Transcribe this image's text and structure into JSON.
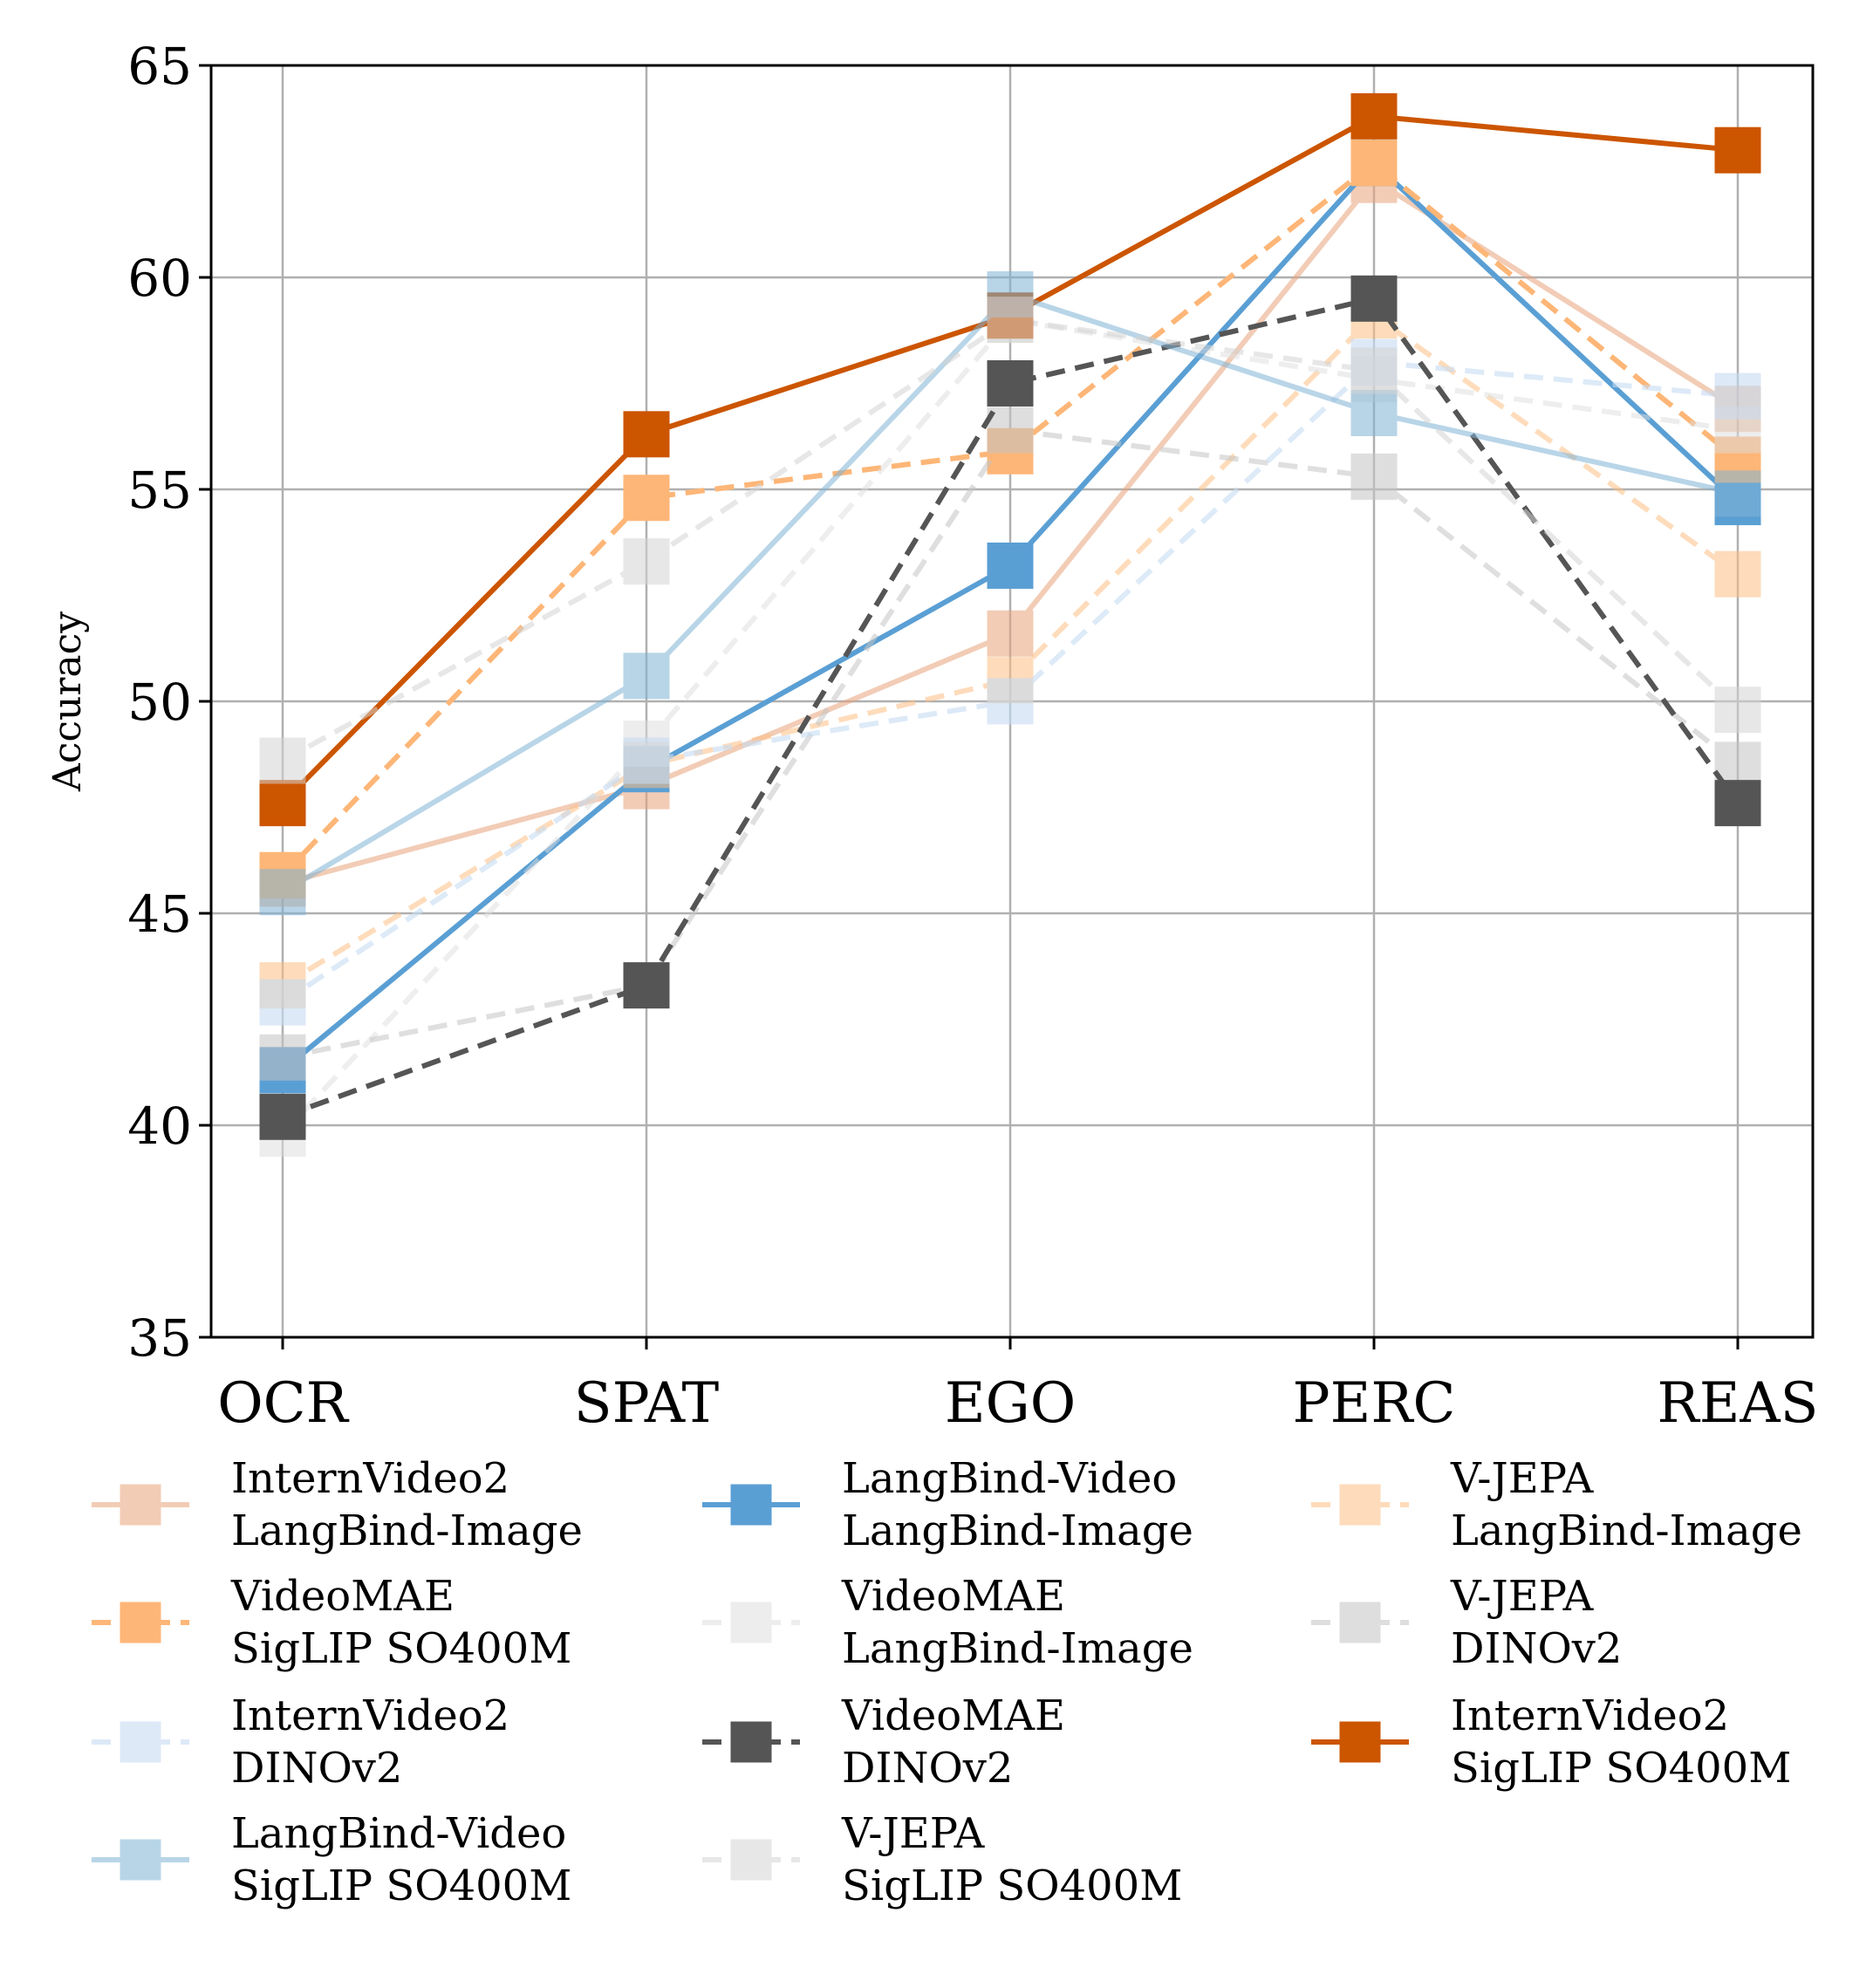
{
  "chart_data": {
    "type": "line",
    "categories": [
      "OCR",
      "SPAT",
      "EGO",
      "PERC",
      "REAS"
    ],
    "ylabel": "Accuracy",
    "ylim": [
      35,
      65
    ],
    "yticks": [
      "35",
      "40",
      "45",
      "50",
      "55",
      "60",
      "65"
    ],
    "grid": true,
    "legend_position": "bottom",
    "series": [
      {
        "name": [
          "InternVideo2",
          "LangBind-Image"
        ],
        "values": [
          45.7,
          48.0,
          51.6,
          62.3,
          56.9
        ],
        "color": "#e8a37a",
        "opacity": 0.55,
        "dashed": false
      },
      {
        "name": [
          "LangBind-Video",
          "LangBind-Image"
        ],
        "values": [
          41.3,
          48.4,
          53.2,
          62.7,
          54.7
        ],
        "color": "#5a9fd4",
        "opacity": 1.0,
        "dashed": false
      },
      {
        "name": [
          "V-JEPA",
          "LangBind-Image"
        ],
        "values": [
          43.3,
          48.5,
          50.5,
          59.1,
          53.0
        ],
        "color": "#fdbf84",
        "opacity": 0.55,
        "dashed": true
      },
      {
        "name": [
          "VideoMAE",
          "SigLIP SO400M"
        ],
        "values": [
          45.9,
          54.8,
          55.9,
          62.7,
          55.7
        ],
        "color": "#fdb677",
        "opacity": 1.0,
        "dashed": true
      },
      {
        "name": [
          "VideoMAE",
          "LangBind-Image"
        ],
        "values": [
          39.8,
          49.0,
          59.0,
          57.6,
          56.4
        ],
        "color": "#dddddd",
        "opacity": 0.5,
        "dashed": true
      },
      {
        "name": [
          "V-JEPA",
          "DINOv2"
        ],
        "values": [
          41.6,
          43.3,
          56.4,
          55.3,
          48.5
        ],
        "color": "#c4c4c4",
        "opacity": 0.55,
        "dashed": true
      },
      {
        "name": [
          "InternVideo2",
          "DINOv2"
        ],
        "values": [
          42.9,
          48.6,
          50.0,
          58.0,
          57.2
        ],
        "color": "#c7dcf2",
        "opacity": 0.6,
        "dashed": true
      },
      {
        "name": [
          "VideoMAE",
          "DINOv2"
        ],
        "values": [
          40.2,
          43.3,
          57.5,
          59.5,
          47.6
        ],
        "color": "#555555",
        "opacity": 1.0,
        "dashed": true
      },
      {
        "name": [
          "InternVideo2",
          "SigLIP SO400M"
        ],
        "values": [
          47.6,
          56.3,
          59.1,
          63.8,
          63.0
        ],
        "color": "#cc5500",
        "opacity": 1.0,
        "dashed": false
      },
      {
        "name": [
          "LangBind-Video",
          "SigLIP SO400M"
        ],
        "values": [
          45.5,
          50.6,
          59.6,
          56.8,
          54.9
        ],
        "color": "#7fb3d5",
        "opacity": 0.55,
        "dashed": false
      },
      {
        "name": [
          "V-JEPA",
          "SigLIP SO400M"
        ],
        "values": [
          48.6,
          53.3,
          59.0,
          57.8,
          49.8
        ],
        "color": "#d4d4d4",
        "opacity": 0.55,
        "dashed": true
      }
    ],
    "legend_order": [
      [
        "InternVideo2",
        "LangBind-Image"
      ],
      [
        "VideoMAE",
        "SigLIP SO400M"
      ],
      [
        "InternVideo2",
        "DINOv2"
      ],
      [
        "LangBind-Video",
        "SigLIP SO400M"
      ],
      [
        "LangBind-Video",
        "LangBind-Image"
      ],
      [
        "VideoMAE",
        "LangBind-Image"
      ],
      [
        "VideoMAE",
        "DINOv2"
      ],
      [
        "V-JEPA",
        "SigLIP SO400M"
      ],
      [
        "V-JEPA",
        "LangBind-Image"
      ],
      [
        "V-JEPA",
        "DINOv2"
      ],
      [
        "InternVideo2",
        "SigLIP SO400M"
      ]
    ]
  }
}
